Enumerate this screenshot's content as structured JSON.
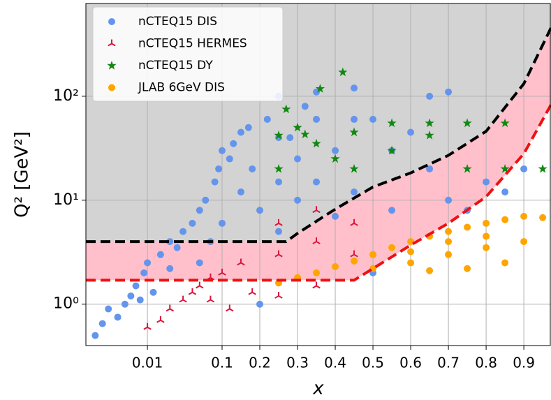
{
  "chart_data": {
    "type": "scatter",
    "xlabel": "x",
    "ylabel": "Q² [GeV²]",
    "xscale": "log-linear",
    "xlinthresh": 0.1,
    "yscale": "log",
    "grid": true,
    "legend": "upper left",
    "xlim": [
      0.0015,
      0.972
    ],
    "ylim": [
      0.4,
      780
    ],
    "xticks": [
      0.01,
      0.1,
      0.2,
      0.3,
      0.4,
      0.5,
      0.6,
      0.7,
      0.8,
      0.9
    ],
    "yticks": [
      {
        "value": 1,
        "label": "10⁰"
      },
      {
        "value": 10,
        "label": "10¹"
      },
      {
        "value": 100,
        "label": "10²"
      }
    ],
    "shading": {
      "above": "#d3d3d3",
      "between": "#ffc0cb"
    },
    "curves": [
      {
        "color": "#000000",
        "x": [
          0.0015,
          0.27,
          0.3,
          0.4,
          0.5,
          0.6,
          0.7,
          0.8,
          0.9,
          0.972
        ],
        "values": [
          4,
          4,
          4.8,
          8.2,
          13.4,
          18.3,
          27,
          46,
          132,
          455
        ]
      },
      {
        "color": "#ee1111",
        "x": [
          0.0015,
          0.45,
          0.5,
          0.6,
          0.7,
          0.8,
          0.9,
          0.972
        ],
        "values": [
          1.7,
          1.7,
          2.2,
          3.7,
          6,
          10.8,
          28,
          83
        ]
      }
    ],
    "series": [
      {
        "name": "nCTEQ15 DIS",
        "color": "#6495ed",
        "marker": "circle",
        "x": [
          0.002,
          0.0025,
          0.003,
          0.004,
          0.005,
          0.006,
          0.007,
          0.008,
          0.009,
          0.01,
          0.012,
          0.015,
          0.02,
          0.02,
          0.025,
          0.03,
          0.04,
          0.05,
          0.05,
          0.06,
          0.07,
          0.08,
          0.09,
          0.1,
          0.1,
          0.12,
          0.13,
          0.15,
          0.15,
          0.17,
          0.18,
          0.2,
          0.2,
          0.22,
          0.25,
          0.25,
          0.25,
          0.28,
          0.3,
          0.32,
          0.35,
          0.35,
          0.4,
          0.4,
          0.45,
          0.45,
          0.5,
          0.5,
          0.55,
          0.55,
          0.6,
          0.65,
          0.65,
          0.7,
          0.7,
          0.75,
          0.8,
          0.85,
          0.9,
          0.45,
          0.35,
          0.25,
          0.3
        ],
        "values": [
          0.5,
          0.65,
          0.9,
          0.75,
          1.0,
          1.2,
          1.5,
          1.1,
          2.0,
          2.5,
          1.3,
          3.0,
          2.2,
          4.0,
          3.5,
          5.0,
          6.0,
          2.5,
          8.0,
          10,
          4,
          15,
          20,
          30,
          6,
          25,
          35,
          12,
          45,
          50,
          20,
          1.0,
          8,
          60,
          100,
          15,
          5,
          40,
          25,
          80,
          110,
          15,
          7,
          30,
          120,
          12,
          60,
          2.0,
          30,
          8,
          45,
          100,
          20,
          110,
          10,
          8,
          15,
          12,
          20,
          60,
          60,
          40,
          10
        ]
      },
      {
        "name": "nCTEQ15 HERMES",
        "color": "#dc143c",
        "marker": "tri",
        "x": [
          0.01,
          0.015,
          0.02,
          0.03,
          0.04,
          0.05,
          0.07,
          0.1,
          0.15,
          0.25,
          0.25,
          0.25,
          0.35,
          0.35,
          0.35,
          0.45,
          0.45,
          0.18,
          0.12,
          0.07
        ],
        "values": [
          0.6,
          0.7,
          0.9,
          1.1,
          1.3,
          1.5,
          1.8,
          2.0,
          2.5,
          3.0,
          6,
          1.2,
          4,
          8,
          1.5,
          3,
          6,
          1.3,
          0.9,
          1.1
        ]
      },
      {
        "name": "nCTEQ15 DY",
        "color": "#118811",
        "marker": "star",
        "x": [
          0.25,
          0.25,
          0.27,
          0.3,
          0.32,
          0.35,
          0.36,
          0.4,
          0.42,
          0.45,
          0.45,
          0.55,
          0.55,
          0.65,
          0.65,
          0.75,
          0.75,
          0.85,
          0.85,
          0.95
        ],
        "values": [
          20,
          42,
          75,
          50,
          43,
          35,
          118,
          25,
          170,
          20,
          45,
          30,
          55,
          42,
          55,
          20,
          55,
          20,
          55,
          20
        ]
      },
      {
        "name": "JLAB 6GeV DIS",
        "color": "#ffa500",
        "marker": "circle",
        "x": [
          0.25,
          0.3,
          0.35,
          0.4,
          0.45,
          0.5,
          0.55,
          0.6,
          0.65,
          0.7,
          0.75,
          0.8,
          0.85,
          0.9,
          0.5,
          0.6,
          0.7,
          0.8,
          0.9,
          0.85,
          0.75,
          0.65,
          0.95,
          0.8,
          0.7,
          0.6
        ],
        "values": [
          1.6,
          1.8,
          2.0,
          2.3,
          2.6,
          3.0,
          3.5,
          4.0,
          4.5,
          5.0,
          5.5,
          6.0,
          6.5,
          7.0,
          2.2,
          2.5,
          3.0,
          3.5,
          4.0,
          2.5,
          2.2,
          2.1,
          6.8,
          4.5,
          4,
          3.2
        ]
      }
    ]
  }
}
